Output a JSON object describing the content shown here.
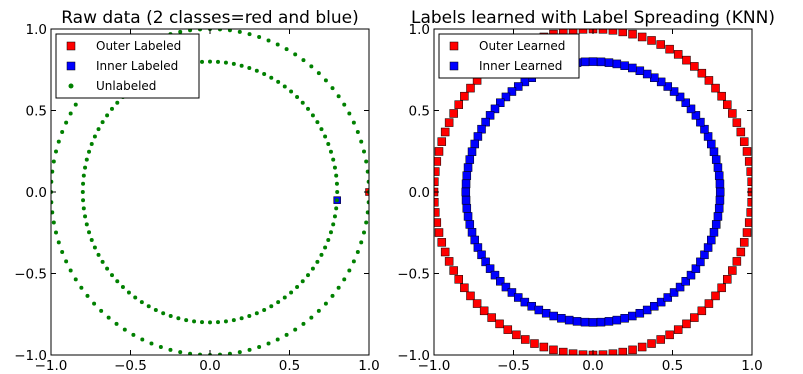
{
  "chart_data": [
    {
      "type": "scatter",
      "title": "Raw data (2 classes=red and blue)",
      "xlim": [
        -1.0,
        1.0
      ],
      "ylim": [
        -1.0,
        1.0
      ],
      "xticks": [
        "−1.0",
        "−0.5",
        "0.0",
        "0.5",
        "1.0"
      ],
      "yticks": [
        "−1.0",
        "−0.5",
        "0.0",
        "0.5",
        "1.0"
      ],
      "grid": false,
      "legend_position": "top-left",
      "series": [
        {
          "name": "Outer Labeled",
          "marker": "square",
          "color": "#ff0000",
          "points": [
            [
              1.0,
              0.0
            ]
          ]
        },
        {
          "name": "Inner Labeled",
          "marker": "square",
          "color": "#0000ff",
          "points": [
            [
              0.8,
              -0.05
            ]
          ]
        },
        {
          "name": "Unlabeled",
          "marker": "dot",
          "color": "#008000",
          "shape": "two concentric circles",
          "outer_ring": {
            "radius": 1.0,
            "count": 100
          },
          "inner_ring": {
            "radius": 0.8,
            "count": 100
          }
        }
      ]
    },
    {
      "type": "scatter",
      "title": "Labels learned with Label Spreading (KNN)",
      "xlim": [
        -1.0,
        1.0
      ],
      "ylim": [
        -1.0,
        1.0
      ],
      "xticks": [
        "−1.0",
        "−0.5",
        "0.0",
        "0.5",
        "1.0"
      ],
      "yticks": [
        "−1.0",
        "−0.5",
        "0.0",
        "0.5",
        "1.0"
      ],
      "grid": false,
      "legend_position": "top-left",
      "series": [
        {
          "name": "Outer Learned",
          "marker": "square",
          "color": "#ff0000",
          "shape": "circle",
          "radius": 1.0,
          "count": 100
        },
        {
          "name": "Inner Learned",
          "marker": "square",
          "color": "#0000ff",
          "shape": "circle",
          "radius": 0.8,
          "count": 100
        }
      ]
    }
  ]
}
